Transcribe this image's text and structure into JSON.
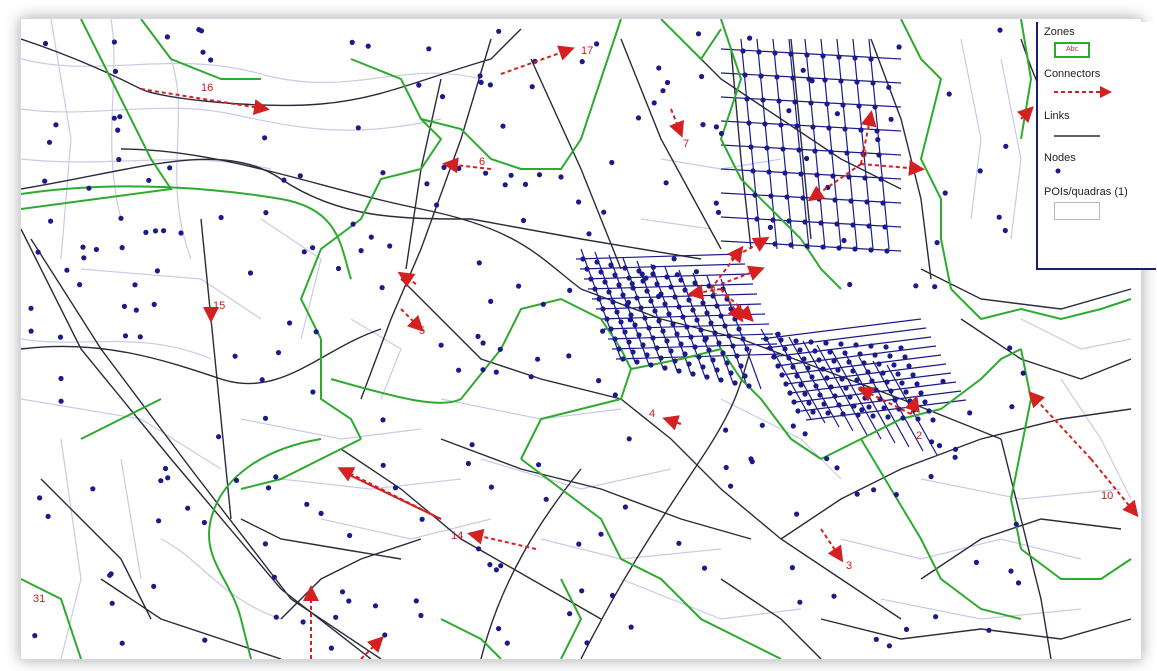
{
  "legend": {
    "zones": {
      "title": "Zones",
      "sample": "Abc"
    },
    "connectors": {
      "title": "Connectors"
    },
    "links": {
      "title": "Links"
    },
    "nodes": {
      "title": "Nodes"
    },
    "pois": {
      "title": "POIs/quadras (1)"
    }
  },
  "connector_labels": [
    "1",
    "2",
    "3",
    "4",
    "5",
    "6",
    "7",
    "8",
    "10",
    "14",
    "15",
    "16",
    "17",
    "31"
  ],
  "colors": {
    "zone_border": "#2eaa2e",
    "connector": "#d42020",
    "link": "#2a2a3a",
    "node": "#1a1a8a",
    "street": "#c9cbe6",
    "legend_border": "#1a1a7a"
  }
}
